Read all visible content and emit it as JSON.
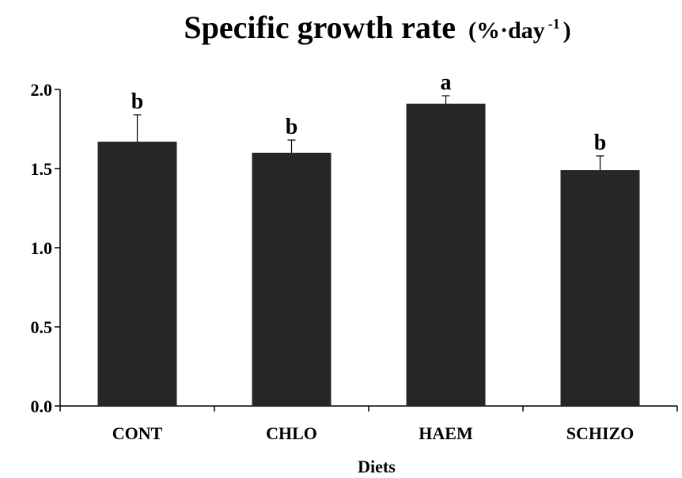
{
  "chart_data": {
    "type": "bar",
    "title": "Specific growth rate",
    "title_unit_prefix": "(%·day",
    "title_unit_sup": "-1",
    "title_unit_suffix": ")",
    "xlabel": "Diets",
    "ylabel": "",
    "categories": [
      "CONT",
      "CHLO",
      "HAEM",
      "SCHIZO"
    ],
    "values": [
      1.67,
      1.6,
      1.91,
      1.49
    ],
    "errors": [
      0.17,
      0.08,
      0.05,
      0.09
    ],
    "significance": [
      "b",
      "b",
      "a",
      "b"
    ],
    "ylim": [
      0,
      2.0
    ],
    "yticks": [
      "0.0",
      "0.5",
      "1.0",
      "1.5",
      "2.0"
    ],
    "bar_color": "#262626",
    "grid": false,
    "legend": false
  }
}
